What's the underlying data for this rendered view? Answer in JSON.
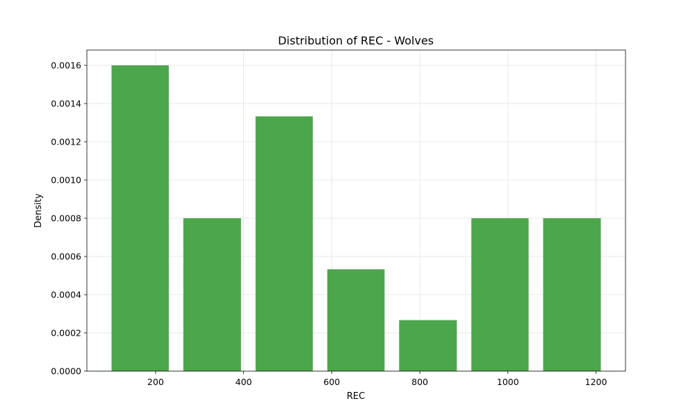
{
  "chart_data": {
    "type": "bar",
    "title": "Distribution of REC - Wolves",
    "xlabel": "REC",
    "ylabel": "Density",
    "bins": [
      {
        "start": 100,
        "end": 230,
        "density": 0.0016
      },
      {
        "start": 263,
        "end": 394,
        "density": 0.0008
      },
      {
        "start": 427,
        "end": 557,
        "density": 0.001333
      },
      {
        "start": 590,
        "end": 720,
        "density": 0.000533
      },
      {
        "start": 753,
        "end": 884,
        "density": 0.000267
      },
      {
        "start": 917,
        "end": 1047,
        "density": 0.0008
      },
      {
        "start": 1080,
        "end": 1211,
        "density": 0.0008
      }
    ],
    "xlim": [
      44,
      1267
    ],
    "ylim": [
      0,
      0.00168
    ],
    "xticks": [
      {
        "value": 200,
        "label": "200"
      },
      {
        "value": 400,
        "label": "400"
      },
      {
        "value": 600,
        "label": "600"
      },
      {
        "value": 800,
        "label": "800"
      },
      {
        "value": 1000,
        "label": "1000"
      },
      {
        "value": 1200,
        "label": "1200"
      }
    ],
    "yticks": [
      {
        "value": 0,
        "label": "0.0000"
      },
      {
        "value": 0.0002,
        "label": "0.0002"
      },
      {
        "value": 0.0004,
        "label": "0.0004"
      },
      {
        "value": 0.0006,
        "label": "0.0006"
      },
      {
        "value": 0.0008,
        "label": "0.0008"
      },
      {
        "value": 0.001,
        "label": "0.0010"
      },
      {
        "value": 0.0012,
        "label": "0.0012"
      },
      {
        "value": 0.0014,
        "label": "0.0014"
      },
      {
        "value": 0.0016,
        "label": "0.0016"
      }
    ],
    "grid": true,
    "bar_color": "#4ca64c"
  }
}
